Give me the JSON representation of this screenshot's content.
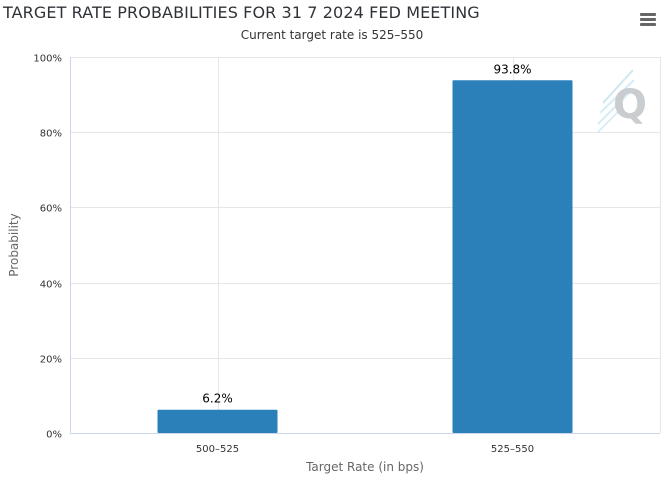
{
  "header": {
    "title": "TARGET RATE PROBABILITIES FOR 31 7 2024 FED MEETING",
    "subtitle": "Current target rate is 525–550",
    "menu_icon": "hamburger-menu-icon"
  },
  "watermark_icon": "q-logo-watermark",
  "chart_data": {
    "type": "bar",
    "title": "TARGET RATE PROBABILITIES FOR 31 7 2024 FED MEETING",
    "subtitle": "Current target rate is 525–550",
    "xlabel": "Target Rate (in bps)",
    "ylabel": "Probability",
    "categories": [
      "500–525",
      "525–550"
    ],
    "values": [
      6.2,
      93.8
    ],
    "data_labels": [
      "6.2%",
      "93.8%"
    ],
    "ylim": [
      0,
      100
    ],
    "yticks": [
      0,
      20,
      40,
      60,
      80,
      100
    ],
    "ytick_labels": [
      "0%",
      "20%",
      "40%",
      "60%",
      "80%",
      "100%"
    ],
    "grid": true,
    "legend": "none",
    "bar_color": "#2b80b9"
  }
}
